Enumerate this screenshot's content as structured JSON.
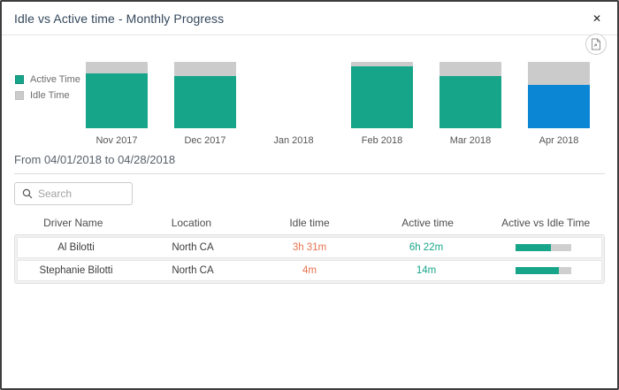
{
  "modal": {
    "title": "Idle vs Active time - Monthly Progress",
    "close_label": "✕"
  },
  "chart_data": {
    "type": "bar",
    "stacked": true,
    "unit": "percent_of_month",
    "categories": [
      "Nov 2017",
      "Dec 2017",
      "Jan 2018",
      "Feb 2018",
      "Mar 2018",
      "Apr 2018"
    ],
    "series": [
      {
        "name": "Active Time",
        "values": [
          83,
          79,
          0,
          93,
          79,
          65
        ]
      },
      {
        "name": "Idle Time",
        "values": [
          17,
          21,
          0,
          7,
          21,
          35
        ]
      }
    ],
    "selected_category": "Apr 2018",
    "legend_position": "left",
    "axis_labels_shown": false
  },
  "colors": {
    "active_teal": "#17a589",
    "idle_gray": "#cbcbcb",
    "selected_blue": "#0a86d4",
    "idle_text_orange": "#e8724e"
  },
  "period": {
    "label": "From 04/01/2018 to 04/28/2018"
  },
  "search": {
    "placeholder": "Search"
  },
  "table": {
    "columns": [
      "Driver Name",
      "Location",
      "Idle time",
      "Active time",
      "Active vs Idle Time"
    ],
    "rows": [
      {
        "driver": "Al Bilotti",
        "location": "North CA",
        "idle": "3h 31m",
        "active": "6h 22m",
        "active_pct": 64
      },
      {
        "driver": "Stephanie Bilotti",
        "location": "North CA",
        "idle": "4m",
        "active": "14m",
        "active_pct": 78
      }
    ]
  }
}
